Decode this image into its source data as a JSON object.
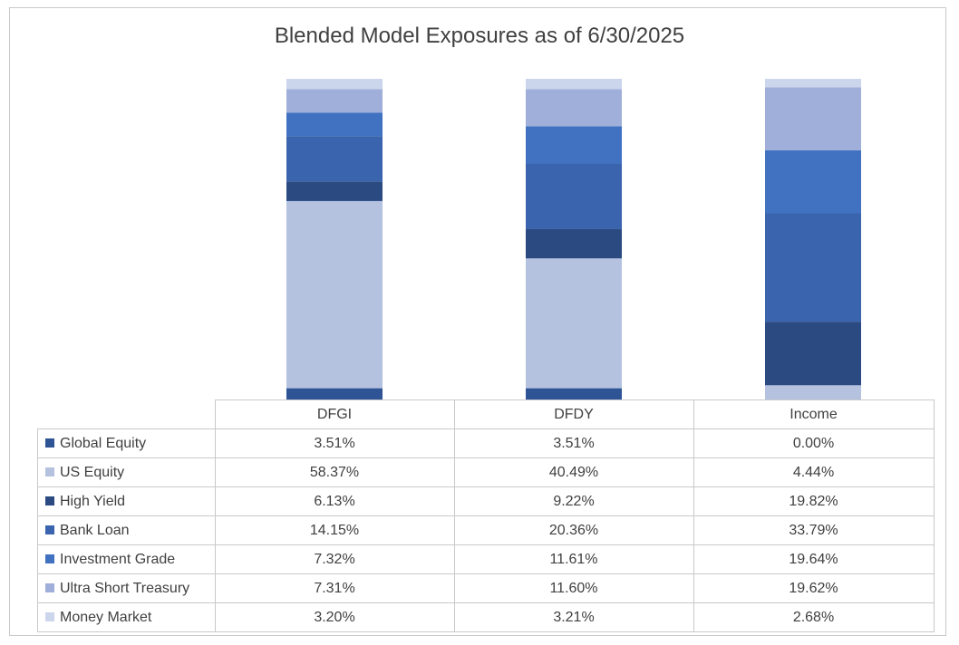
{
  "chart_data": {
    "type": "bar",
    "stacked": true,
    "title": "Blended Model Exposures as of 6/30/2025",
    "categories": [
      "DFGI",
      "DFDY",
      "Income"
    ],
    "ylim": [
      0,
      100
    ],
    "series": [
      {
        "name": "Global Equity",
        "color": "#2F5496",
        "values": [
          3.51,
          3.51,
          0.0
        ],
        "labels": [
          "3.51%",
          "3.51%",
          "0.00%"
        ]
      },
      {
        "name": "US Equity",
        "color": "#B4C2E0",
        "values": [
          58.37,
          40.49,
          4.44
        ],
        "labels": [
          "58.37%",
          "40.49%",
          "4.44%"
        ]
      },
      {
        "name": "High Yield",
        "color": "#2B4A82",
        "values": [
          6.13,
          9.22,
          19.82
        ],
        "labels": [
          "6.13%",
          "9.22%",
          "19.82%"
        ]
      },
      {
        "name": "Bank Loan",
        "color": "#3A65AE",
        "values": [
          14.15,
          20.36,
          33.79
        ],
        "labels": [
          "14.15%",
          "20.36%",
          "33.79%"
        ]
      },
      {
        "name": "Investment Grade",
        "color": "#4171C1",
        "values": [
          7.32,
          11.61,
          19.64
        ],
        "labels": [
          "7.32%",
          "11.61%",
          "19.64%"
        ]
      },
      {
        "name": "Ultra Short Treasury",
        "color": "#9FAFD9",
        "values": [
          7.31,
          11.6,
          19.62
        ],
        "labels": [
          "7.31%",
          "11.60%",
          "19.62%"
        ]
      },
      {
        "name": "Money Market",
        "color": "#CBD5EC",
        "values": [
          3.2,
          3.21,
          2.68
        ],
        "labels": [
          "3.20%",
          "3.21%",
          "2.68%"
        ]
      }
    ]
  }
}
